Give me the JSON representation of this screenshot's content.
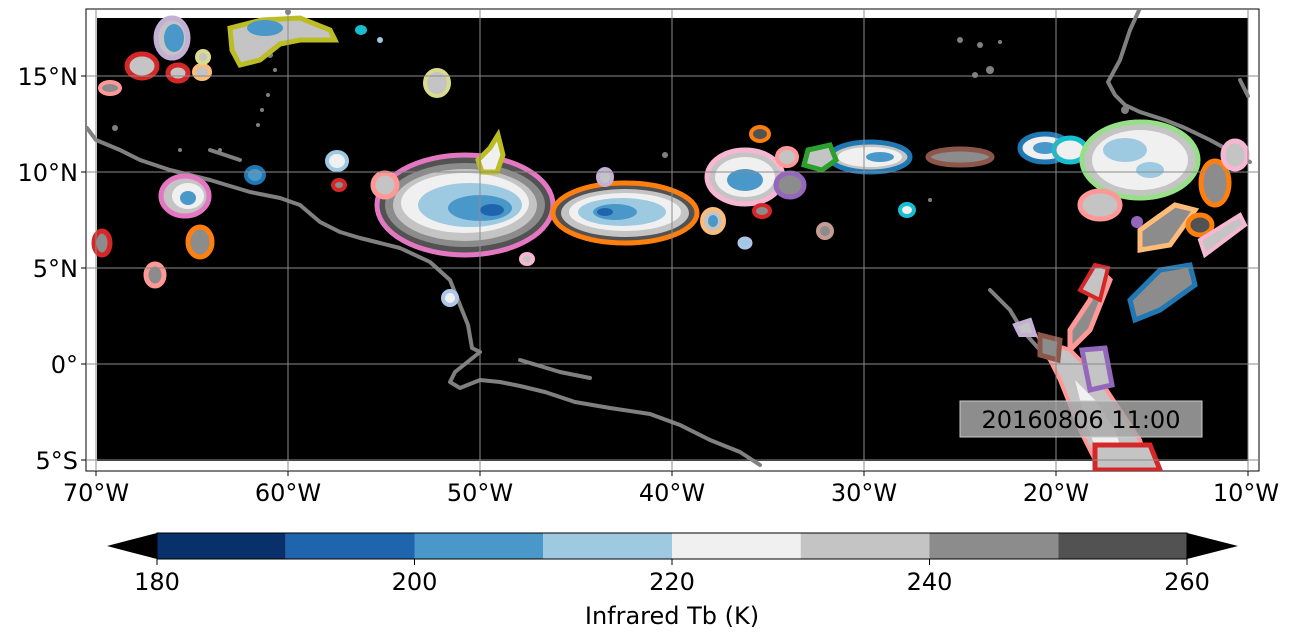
{
  "map": {
    "lon_ticks": [
      "70°W",
      "60°W",
      "50°W",
      "40°W",
      "30°W",
      "20°W",
      "10°W"
    ],
    "lat_ticks": [
      "15°N",
      "10°N",
      "5°N",
      "0°",
      "5°S"
    ],
    "timestamp": "20160806 11:00"
  },
  "colorbar": {
    "label": "Infrared Tb (K)",
    "ticks": [
      "180",
      "200",
      "220",
      "240",
      "260"
    ],
    "bins": [
      {
        "from": 180,
        "to": 190,
        "color": "#08306b"
      },
      {
        "from": 190,
        "to": 200,
        "color": "#1f65ae"
      },
      {
        "from": 200,
        "to": 210,
        "color": "#4a98c9"
      },
      {
        "from": 210,
        "to": 220,
        "color": "#9ecae1"
      },
      {
        "from": 220,
        "to": 230,
        "color": "#f0f0f0"
      },
      {
        "from": 230,
        "to": 240,
        "color": "#c4c4c4"
      },
      {
        "from": 240,
        "to": 250,
        "color": "#8c8c8c"
      },
      {
        "from": 250,
        "to": 260,
        "color": "#525252"
      }
    ],
    "under_color": "#000000",
    "over_color": "#000000"
  },
  "colors": {
    "background": "#000000",
    "coastline": "#808080",
    "gridline": "#8c8c8c"
  }
}
